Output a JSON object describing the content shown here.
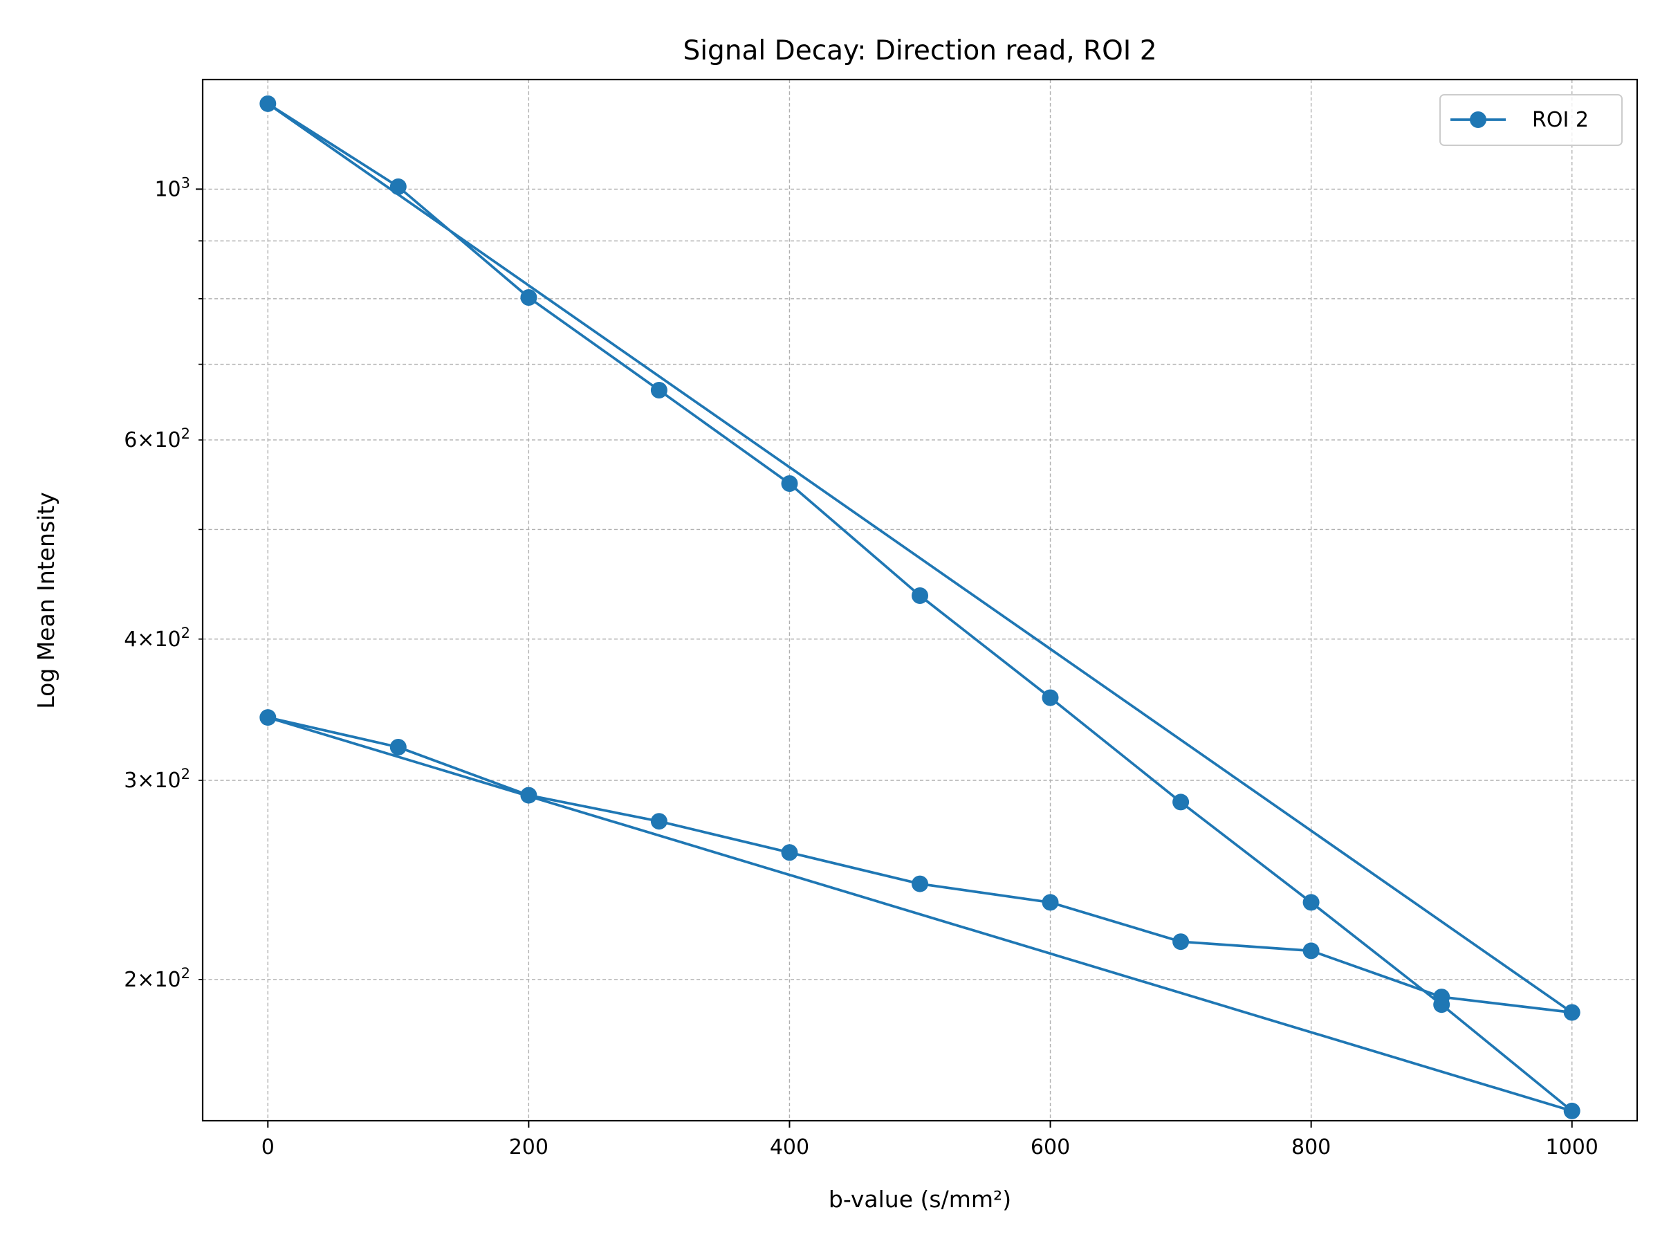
{
  "chart_data": {
    "type": "line",
    "title": "Signal Decay: Direction read, ROI 2",
    "xlabel": "b-value (s/mm²)",
    "ylabel": "Log Mean Intensity",
    "xlim": [
      -50,
      1050
    ],
    "ylim": [
      150,
      1250
    ],
    "yscale": "log",
    "xticks": [
      0,
      200,
      400,
      600,
      800,
      1000
    ],
    "xtick_labels": [
      "0",
      "200",
      "400",
      "600",
      "800",
      "1000"
    ],
    "yticks_major": [
      1000
    ],
    "yticks_minor": [
      200,
      300,
      400,
      500,
      600,
      700,
      800,
      900
    ],
    "ytick_labels": [
      {
        "value": 1000,
        "mantissa": "",
        "base": "10",
        "exp": "3"
      },
      {
        "value": 600,
        "mantissa": "6",
        "base": "10",
        "exp": "2"
      },
      {
        "value": 400,
        "mantissa": "4",
        "base": "10",
        "exp": "2"
      },
      {
        "value": 300,
        "mantissa": "3",
        "base": "10",
        "exp": "2"
      },
      {
        "value": 200,
        "mantissa": "2",
        "base": "10",
        "exp": "2"
      }
    ],
    "grid": true,
    "legend": {
      "location": "top-right",
      "entries": [
        "ROI 2"
      ]
    },
    "series": [
      {
        "name": "ROI 2",
        "color": "#1f77b4",
        "marker": "circle",
        "x": [
          0,
          100,
          200,
          300,
          400,
          500,
          600,
          700,
          800,
          900,
          1000,
          0,
          100,
          200,
          300,
          400,
          500,
          600,
          700,
          800,
          900,
          1000,
          0
        ],
        "y": [
          1190,
          1005,
          802,
          664,
          549,
          437,
          355,
          287,
          234,
          190,
          153,
          341,
          321,
          291,
          276,
          259,
          243,
          234,
          216,
          212,
          193,
          187,
          1190
        ]
      }
    ]
  }
}
